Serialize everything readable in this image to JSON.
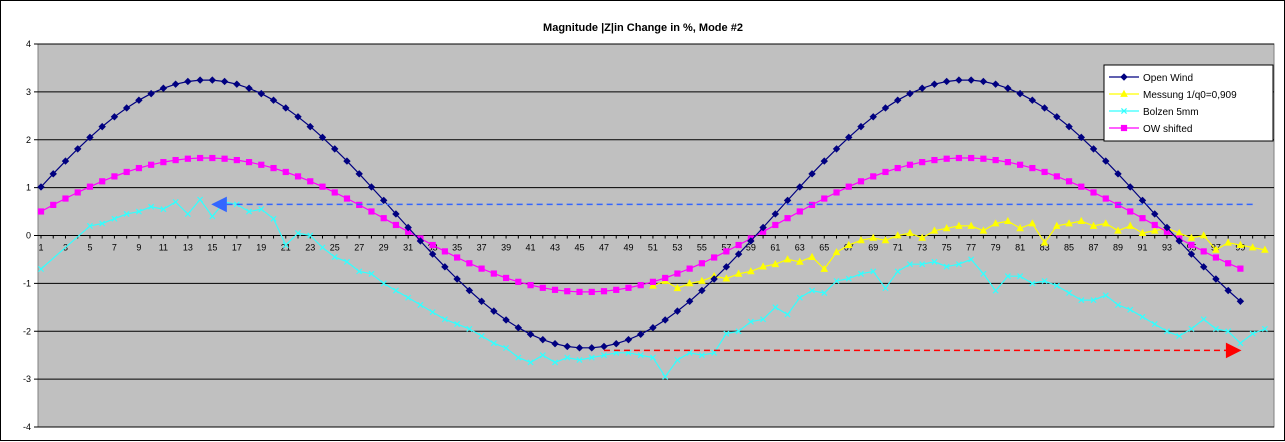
{
  "chart_data": {
    "type": "line",
    "title": "Magnitude |Z|in Change in %, Mode #2",
    "xlabel": "",
    "ylabel": "",
    "xlim": [
      1,
      99
    ],
    "ylim": [
      -4,
      4
    ],
    "yticks": [
      4,
      3,
      2,
      1,
      0,
      -1,
      -2,
      -3,
      -4
    ],
    "xtick_labels": [
      "1",
      "3",
      "5",
      "7",
      "9",
      "11",
      "13",
      "15",
      "17",
      "19",
      "21",
      "23",
      "25",
      "27",
      "29",
      "31",
      "33",
      "35",
      "37",
      "39",
      "41",
      "43",
      "45",
      "47",
      "49",
      "51",
      "53",
      "55",
      "57",
      "59",
      "61",
      "63",
      "65",
      "67",
      "69",
      "71",
      "73",
      "75",
      "77",
      "79",
      "81",
      "83",
      "85",
      "87",
      "89",
      "91",
      "93",
      "95",
      "97",
      "99"
    ],
    "grid": true,
    "legend_position": "top-right",
    "series": [
      {
        "name": "Open Wind",
        "color": "#000080",
        "marker": "diamond",
        "model": {
          "type": "sine",
          "amp": 2.8,
          "phase_peak": 14.5,
          "period": 62,
          "center": 0.45,
          "x_start": 1,
          "x_end": 99
        }
      },
      {
        "name": "Messung 1/q0=0,909",
        "color": "#ffff00",
        "marker": "triangle",
        "x_start": 51,
        "values": [
          -1.05,
          -0.95,
          -1.1,
          -1.0,
          -0.95,
          -0.85,
          -0.9,
          -0.8,
          -0.75,
          -0.65,
          -0.6,
          -0.5,
          -0.55,
          -0.45,
          -0.7,
          -0.35,
          -0.2,
          -0.1,
          -0.05,
          -0.1,
          0.0,
          0.05,
          -0.05,
          0.1,
          0.15,
          0.2,
          0.2,
          0.1,
          0.25,
          0.3,
          0.15,
          0.25,
          -0.15,
          0.2,
          0.25,
          0.3,
          0.2,
          0.25,
          0.1,
          0.2,
          0.05,
          0.1,
          0.15,
          0.05,
          -0.05,
          0.0,
          -0.3,
          -0.15,
          -0.2,
          -0.25,
          -0.3,
          -0.35,
          -0.45,
          -0.35,
          -0.6,
          -0.4,
          -0.5,
          -0.6,
          -0.55
        ]
      },
      {
        "name": "Bolzen 5mm",
        "color": "#33ffff",
        "marker": "x",
        "points": [
          [
            1,
            -0.7
          ],
          [
            5,
            0.2
          ],
          [
            6,
            0.25
          ],
          [
            7,
            0.35
          ],
          [
            8,
            0.45
          ],
          [
            9,
            0.5
          ],
          [
            10,
            0.6
          ],
          [
            11,
            0.55
          ],
          [
            12,
            0.7
          ],
          [
            13,
            0.45
          ],
          [
            14,
            0.75
          ],
          [
            15,
            0.4
          ],
          [
            16,
            0.7
          ],
          [
            17,
            0.65
          ],
          [
            18,
            0.5
          ],
          [
            19,
            0.55
          ],
          [
            20,
            0.35
          ],
          [
            21,
            -0.2
          ],
          [
            22,
            0.05
          ],
          [
            23,
            0.0
          ],
          [
            24,
            -0.25
          ],
          [
            25,
            -0.45
          ],
          [
            26,
            -0.55
          ],
          [
            27,
            -0.75
          ],
          [
            28,
            -0.8
          ],
          [
            29,
            -1.0
          ],
          [
            30,
            -1.15
          ],
          [
            31,
            -1.3
          ],
          [
            32,
            -1.45
          ],
          [
            33,
            -1.6
          ],
          [
            34,
            -1.75
          ],
          [
            35,
            -1.85
          ],
          [
            36,
            -1.95
          ],
          [
            37,
            -2.1
          ],
          [
            38,
            -2.25
          ],
          [
            39,
            -2.35
          ],
          [
            40,
            -2.55
          ],
          [
            41,
            -2.65
          ],
          [
            42,
            -2.5
          ],
          [
            43,
            -2.65
          ],
          [
            44,
            -2.55
          ],
          [
            45,
            -2.6
          ],
          [
            46,
            -2.55
          ],
          [
            47,
            -2.5
          ],
          [
            48,
            -2.45
          ],
          [
            49,
            -2.45
          ],
          [
            50,
            -2.5
          ],
          [
            51,
            -2.55
          ],
          [
            52,
            -2.95
          ],
          [
            53,
            -2.6
          ],
          [
            54,
            -2.45
          ],
          [
            55,
            -2.5
          ],
          [
            56,
            -2.45
          ],
          [
            57,
            -2.05
          ],
          [
            58,
            -2.0
          ],
          [
            59,
            -1.8
          ],
          [
            60,
            -1.75
          ],
          [
            61,
            -1.5
          ],
          [
            62,
            -1.65
          ],
          [
            63,
            -1.3
          ],
          [
            64,
            -1.15
          ],
          [
            65,
            -1.2
          ],
          [
            66,
            -0.95
          ],
          [
            67,
            -0.9
          ],
          [
            68,
            -0.8
          ],
          [
            69,
            -0.75
          ],
          [
            70,
            -1.1
          ],
          [
            71,
            -0.75
          ],
          [
            72,
            -0.6
          ],
          [
            73,
            -0.6
          ],
          [
            74,
            -0.55
          ],
          [
            75,
            -0.65
          ],
          [
            76,
            -0.6
          ],
          [
            77,
            -0.5
          ],
          [
            78,
            -0.8
          ],
          [
            79,
            -1.15
          ],
          [
            80,
            -0.85
          ],
          [
            81,
            -0.85
          ],
          [
            82,
            -1.0
          ],
          [
            83,
            -0.95
          ],
          [
            84,
            -1.05
          ],
          [
            85,
            -1.2
          ],
          [
            86,
            -1.35
          ],
          [
            87,
            -1.35
          ],
          [
            88,
            -1.25
          ],
          [
            89,
            -1.45
          ],
          [
            90,
            -1.55
          ],
          [
            91,
            -1.7
          ],
          [
            92,
            -1.85
          ],
          [
            93,
            -2.0
          ],
          [
            94,
            -2.1
          ],
          [
            95,
            -1.95
          ],
          [
            96,
            -1.75
          ],
          [
            97,
            -1.95
          ],
          [
            98,
            -2.0
          ],
          [
            99,
            -2.25
          ],
          [
            100,
            -2.05
          ],
          [
            101,
            -1.95
          ]
        ]
      },
      {
        "name": "OW shifted",
        "color": "#ff00ff",
        "marker": "square",
        "model": {
          "type": "sine",
          "amp": 1.4,
          "phase_peak": 14.5,
          "period": 62,
          "center": 0.22,
          "x_start": 1,
          "x_end": 99
        }
      }
    ],
    "arrows": [
      {
        "color": "#3366ff",
        "x_from": 100,
        "x_to": 15,
        "y": 0.65
      },
      {
        "color": "#ff0000",
        "x_from": 47,
        "x_to": 99,
        "y": -2.4
      }
    ]
  }
}
